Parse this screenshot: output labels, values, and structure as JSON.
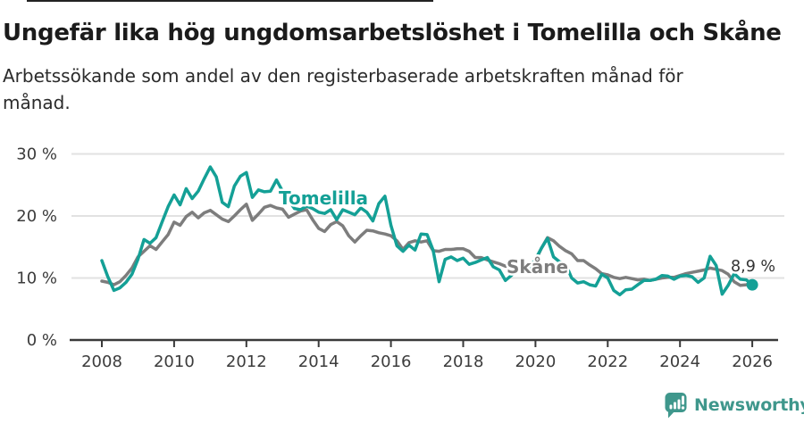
{
  "title": "Ungefär lika hög ungdomsarbetslöshet i Tomelilla och Skåne",
  "subtitle": {
    "line1": "Arbetssökande som andel av den registerbaserade arbetskraften månad för",
    "line2": "månad."
  },
  "chart_data": {
    "type": "line",
    "x_start": 2008.0,
    "x_step_months": 2,
    "xlabel": "",
    "ylabel": "",
    "ylim": [
      0,
      32
    ],
    "xlim": [
      2007.15,
      2027
    ],
    "grid": true,
    "grid_color": "#e2e2e2",
    "axis_color": "#3a3a3a",
    "tick_label_color": "#3c3c3c",
    "yticks": [
      {
        "value": 0,
        "label": "0 %"
      },
      {
        "value": 10,
        "label": "10 %"
      },
      {
        "value": 20,
        "label": "20 %"
      },
      {
        "value": 30,
        "label": "30 %"
      }
    ],
    "xticks": [
      {
        "value": 2008,
        "label": "2008"
      },
      {
        "value": 2010,
        "label": "2010"
      },
      {
        "value": 2012,
        "label": "2012"
      },
      {
        "value": 2014,
        "label": "2014"
      },
      {
        "value": 2016,
        "label": "2016"
      },
      {
        "value": 2018,
        "label": "2018"
      },
      {
        "value": 2020,
        "label": "2020"
      },
      {
        "value": 2022,
        "label": "2022"
      },
      {
        "value": 2024,
        "label": "2024"
      },
      {
        "value": 2026,
        "label": "2026"
      }
    ],
    "series": [
      {
        "name": "Skåne",
        "color": "#7d7d7d",
        "values": [
          9.5,
          9.3,
          8.9,
          9.4,
          10.4,
          11.6,
          13.4,
          14.3,
          15.2,
          14.6,
          15.8,
          17.0,
          19.0,
          18.5,
          19.9,
          20.6,
          19.7,
          20.5,
          20.9,
          20.2,
          19.5,
          19.1,
          20.0,
          21.0,
          21.9,
          19.3,
          20.3,
          21.4,
          21.7,
          21.3,
          21.1,
          19.8,
          20.3,
          20.8,
          21.0,
          19.4,
          18.0,
          17.5,
          18.6,
          19.1,
          18.4,
          16.8,
          15.8,
          16.8,
          17.7,
          17.6,
          17.3,
          17.1,
          16.8,
          16.0,
          14.6,
          15.7,
          16.0,
          15.8,
          16.0,
          14.4,
          14.3,
          14.6,
          14.6,
          14.7,
          14.7,
          14.3,
          13.3,
          13.3,
          12.9,
          12.6,
          12.3,
          11.9,
          11.7,
          11.6,
          11.8,
          12.1,
          12.8,
          14.8,
          16.5,
          16.0,
          15.1,
          14.4,
          13.9,
          12.8,
          12.8,
          12.1,
          11.5,
          10.7,
          10.5,
          10.1,
          9.9,
          10.1,
          9.9,
          9.7,
          9.8,
          9.6,
          9.8,
          10.0,
          10.1,
          10.1,
          10.4,
          10.7,
          10.9,
          11.1,
          11.3,
          11.6,
          11.4,
          11.2,
          10.6,
          9.4,
          8.8,
          8.9,
          9.2
        ]
      },
      {
        "name": "Tomelilla",
        "color": "#14a096",
        "values": [
          12.8,
          10.2,
          8.0,
          8.4,
          9.3,
          10.6,
          13.0,
          16.2,
          15.6,
          16.5,
          19.0,
          21.5,
          23.4,
          21.8,
          24.4,
          22.8,
          24.0,
          26.0,
          27.9,
          26.3,
          22.2,
          21.5,
          24.8,
          26.4,
          27.0,
          23.0,
          24.2,
          23.9,
          24.0,
          25.8,
          24.0,
          22.5,
          21.2,
          21.0,
          21.6,
          21.2,
          20.6,
          20.4,
          21.0,
          19.4,
          21.0,
          20.6,
          20.2,
          21.3,
          20.6,
          19.2,
          22.0,
          23.2,
          18.5,
          15.2,
          14.3,
          15.3,
          14.5,
          17.1,
          17.0,
          14.5,
          9.4,
          13.0,
          13.4,
          12.8,
          13.2,
          12.2,
          12.5,
          12.9,
          13.3,
          11.8,
          11.3,
          9.6,
          10.4,
          11.4,
          11.0,
          11.8,
          13.0,
          14.8,
          16.4,
          13.4,
          12.6,
          12.3,
          10.0,
          9.2,
          9.4,
          8.9,
          8.7,
          10.6,
          10.0,
          8.0,
          7.3,
          8.1,
          8.2,
          8.9,
          9.6,
          9.6,
          9.8,
          10.4,
          10.3,
          9.8,
          10.3,
          10.4,
          10.2,
          9.3,
          10.0,
          13.5,
          12.0,
          7.4,
          8.8,
          10.7,
          9.8,
          9.7,
          8.9
        ]
      }
    ],
    "inline_series_labels": [
      {
        "text": "Tomelilla",
        "color": "#14a096"
      },
      {
        "text": "Skåne",
        "color": "#7d7d7d"
      }
    ],
    "end_annotation": {
      "text": "8,9 %",
      "series": "Tomelilla",
      "color": "#333333"
    }
  },
  "logo": {
    "text": "Newsworthy",
    "color": "#3f978c",
    "icon": "newsworthy-speech-bubble-bar-chart-icon"
  }
}
